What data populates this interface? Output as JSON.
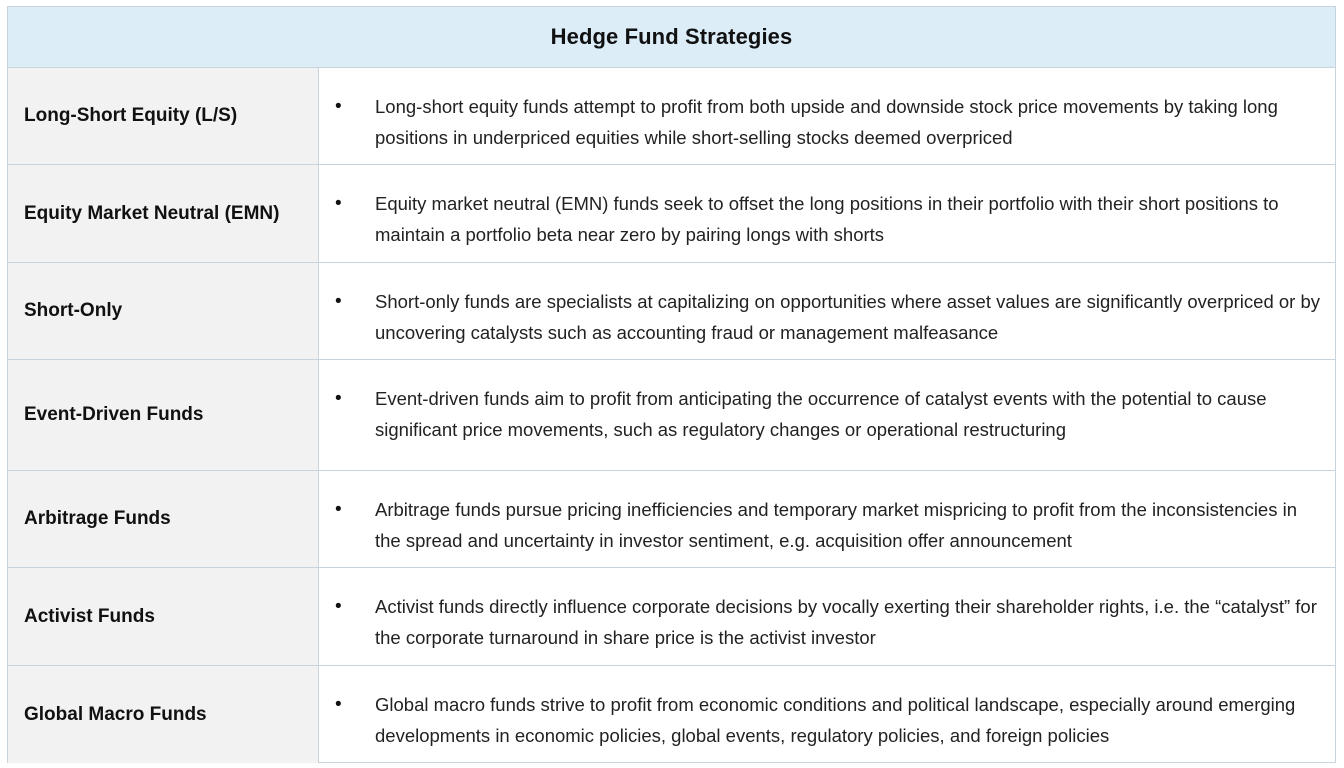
{
  "header": {
    "title": "Hedge Fund Strategies"
  },
  "rows": [
    {
      "label": "Long-Short Equity (L/S)",
      "bullet": "•",
      "description": "Long-short equity funds attempt to profit from both upside and downside stock price movements by taking long positions in underpriced equities while short-selling stocks deemed overpriced"
    },
    {
      "label": "Equity Market Neutral (EMN)",
      "bullet": "•",
      "description": "Equity market neutral (EMN) funds seek to offset the long positions in their portfolio with their short positions to maintain a portfolio beta near zero by pairing longs with shorts"
    },
    {
      "label": "Short-Only",
      "bullet": "•",
      "description": "Short-only funds are specialists at capitalizing on opportunities where asset values are significantly overpriced or by uncovering catalysts such as accounting fraud or management malfeasance"
    },
    {
      "label": "Event-Driven Funds",
      "bullet": "•",
      "description": "Event-driven funds aim to profit from anticipating the occurrence of catalyst events with the potential to cause significant price movements, such as regulatory changes or operational restructuring"
    },
    {
      "label": "Arbitrage Funds",
      "bullet": "•",
      "description": "Arbitrage funds pursue pricing inefficiencies and temporary market mispricing to profit from the inconsistencies in the spread and uncertainty in investor sentiment, e.g. acquisition offer announcement"
    },
    {
      "label": "Activist Funds",
      "bullet": "•",
      "description": "Activist funds directly influence corporate decisions by vocally exerting their shareholder rights, i.e. the “catalyst” for the corporate turnaround in share price is the activist investor"
    },
    {
      "label": "Global Macro Funds",
      "bullet": "•",
      "description": "Global macro funds strive to profit from economic conditions and political landscape, especially around emerging developments in economic policies, global events, regulatory policies, and foreign policies"
    }
  ]
}
